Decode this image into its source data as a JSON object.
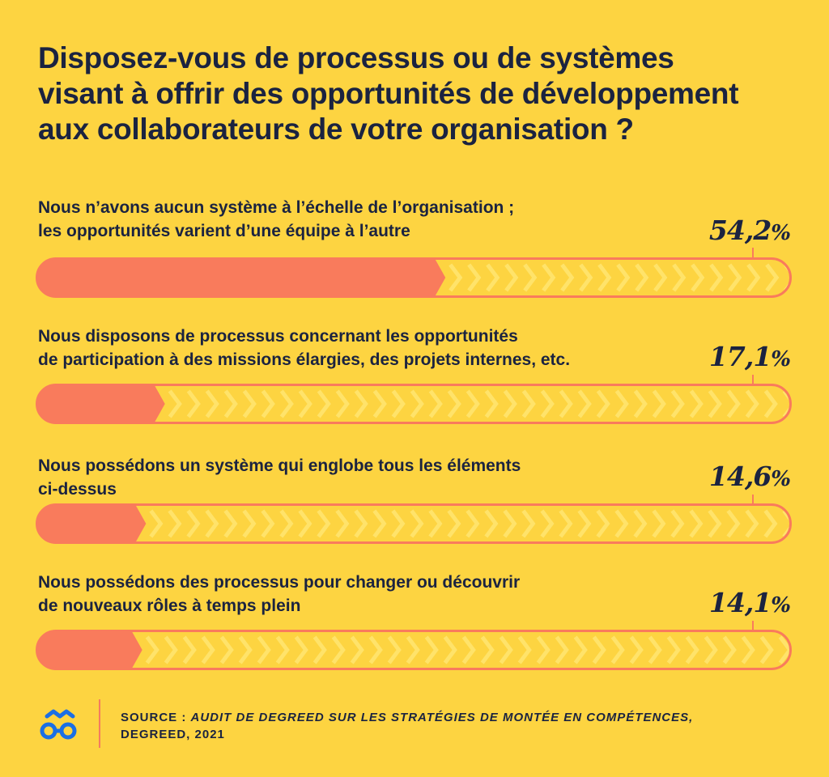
{
  "chart_data": {
    "type": "bar",
    "orientation": "horizontal",
    "title": "Disposez-vous de processus ou de systèmes\nvisant à offrir des opportunités de développement\naux collaborateurs de votre organisation ?",
    "categories": [
      "Nous n’avons aucun système à l’échelle de l’organisation ;\nles opportunités varient d’une équipe à l’autre",
      "Nous disposons de processus concernant les opportunités\nde participation à des missions élargies, des projets internes, etc.",
      "Nous possédons un système qui englobe tous les éléments\nci-dessus",
      "Nous possédons des processus pour changer ou découvrir\nde nouveaux rôles à temps plein"
    ],
    "values": [
      54.2,
      17.1,
      14.6,
      14.1
    ],
    "value_labels": [
      "54,2",
      "17,1",
      "14,6",
      "14,1"
    ],
    "unit": "%",
    "xlim": [
      0,
      100
    ],
    "grid": false,
    "legend": "none"
  },
  "source": {
    "prefix": "SOURCE : ",
    "title": "AUDIT DE DEGREED SUR LES STRATÉGIES DE MONTÉE EN COMPÉTENCES,",
    "suffix": "DEGREED, 2021"
  },
  "logo_icon": "degreed-glasses-icon",
  "colors": {
    "background": "#FDD441",
    "bar_fill": "#F97B5C",
    "chevron": "#FFE36A",
    "text": "#1B2340",
    "logo": "#1B6FE4"
  }
}
